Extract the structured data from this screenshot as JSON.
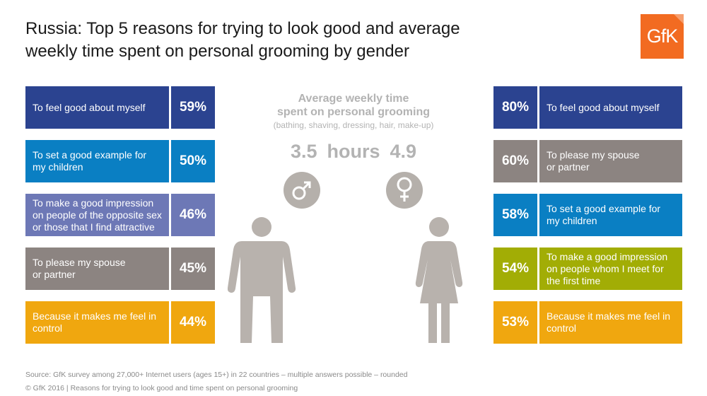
{
  "title_line1": "Russia: Top 5 reasons for trying to look good and average",
  "title_line2": "weekly time spent on personal grooming by gender",
  "logo_text": "GfK",
  "center": {
    "heading_line1": "Average weekly time",
    "heading_line2": "spent on personal grooming",
    "subheading": "(bathing, shaving, dressing, hair, make-up)",
    "male_hours": "3.5",
    "unit": "hours",
    "female_hours": "4.9",
    "male_icon": "male-symbol-icon",
    "female_icon": "female-symbol-icon"
  },
  "colors": {
    "dark_blue": "#2b4390",
    "light_blue": "#0a7fc3",
    "periwinkle": "#6d78b6",
    "grey": "#8c8481",
    "orange": "#f0a70f",
    "olive": "#a2ad05",
    "figure_grey": "#b8b2ad",
    "logo_orange": "#f26b21"
  },
  "chart_data": [
    {
      "type": "bar",
      "title": "Russia: Top 5 reasons for trying to look good and average weekly time spent on personal grooming by gender",
      "categories": [
        [
          "To feel good about myself"
        ],
        [
          "To set a good example for",
          "my children"
        ],
        [
          "To make a good impression",
          "on people of the opposite sex",
          "or those that I find attractive"
        ],
        [
          "To please my spouse",
          "or partner"
        ],
        [
          "Because it makes me feel in",
          "control"
        ]
      ],
      "values": [
        59,
        50,
        46,
        45,
        44
      ],
      "value_labels": [
        "59%",
        "50%",
        "46%",
        "45%",
        "44%"
      ],
      "bar_colors": [
        "#2b4390",
        "#0a7fc3",
        "#6d78b6",
        "#8c8481",
        "#f0a70f"
      ]
    },
    {
      "type": "bar",
      "categories": [
        [
          "To feel good about myself"
        ],
        [
          "To please my spouse",
          "or partner"
        ],
        [
          "To set a good example for",
          "my children"
        ],
        [
          "To make a good impression",
          "on people whom I meet for",
          "the first time"
        ],
        [
          "Because it makes me feel in",
          "control"
        ]
      ],
      "values": [
        80,
        60,
        58,
        54,
        53
      ],
      "value_labels": [
        "80%",
        "60%",
        "58%",
        "54%",
        "53%"
      ],
      "bar_colors": [
        "#2b4390",
        "#8c8481",
        "#0a7fc3",
        "#a2ad05",
        "#f0a70f"
      ]
    },
    {
      "type": "table",
      "columns": [
        "male",
        "female"
      ],
      "values": [
        3.5,
        4.9
      ],
      "unit": "hours"
    }
  ],
  "footer": {
    "source": "Source: GfK survey among 27,000+ Internet users (ages 15+) in 22 countries – multiple answers possible – rounded",
    "copyright": "© GfK 2016 | Reasons for trying to look good and time spent on personal grooming"
  }
}
